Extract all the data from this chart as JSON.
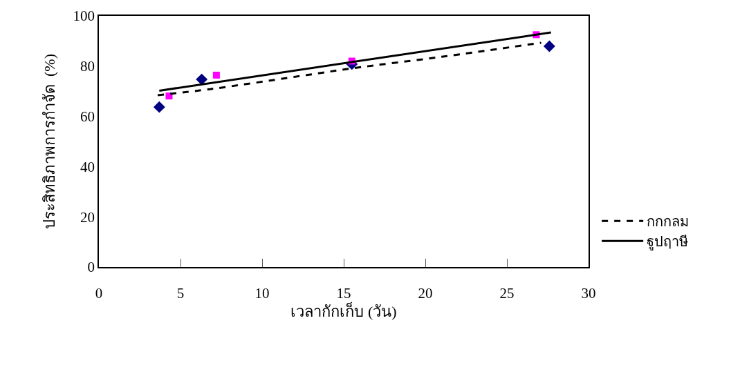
{
  "chart_data": {
    "type": "scatter",
    "xlabel": "เวลากักเก็บ (วัน)",
    "ylabel": "ประสิทธิภาพการกำจัด  (%)",
    "xlim": [
      0,
      30
    ],
    "xticks": [
      0,
      5,
      10,
      15,
      20,
      25,
      30
    ],
    "ylim": [
      0,
      100
    ],
    "yticks": [
      0,
      20,
      40,
      60,
      80,
      100
    ],
    "legend": "right",
    "series": [
      {
        "marker": "diamond",
        "color": "#000080",
        "x": [
          3.7,
          6.3,
          15.5,
          27.6
        ],
        "values": [
          63.7,
          74.7,
          80.8,
          87.9
        ]
      },
      {
        "marker": "square",
        "color": "#ff00ff",
        "x": [
          4.3,
          7.2,
          15.5,
          26.8
        ],
        "values": [
          68.1,
          76.4,
          82.0,
          92.5
        ]
      },
      {
        "type": "line",
        "name": "กกกลม",
        "color": "#000000",
        "line_style": "dashed",
        "marker": "none",
        "x": [
          3.6,
          6.9,
          12.8,
          15.5,
          21,
          27.1
        ],
        "values": [
          68.4,
          70.9,
          76.5,
          79.1,
          83.7,
          89.3
        ]
      },
      {
        "type": "line",
        "name": "ฐูปฤาษี",
        "color": "#000000",
        "line_style": "solid",
        "marker": "none",
        "x": [
          3.7,
          27.7
        ],
        "values": [
          70.2,
          93.4
        ]
      }
    ]
  }
}
